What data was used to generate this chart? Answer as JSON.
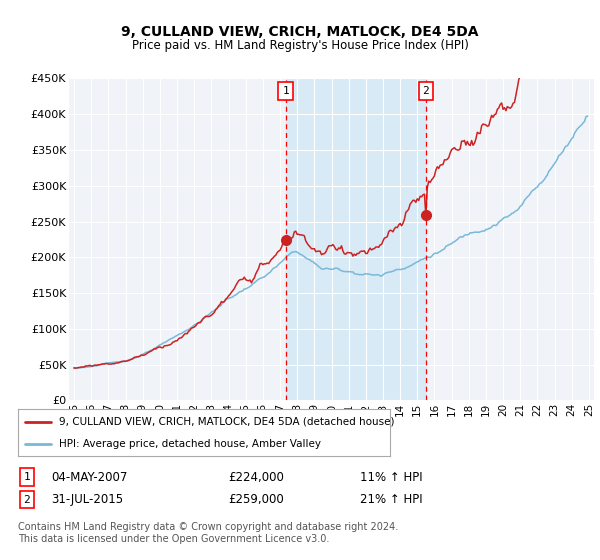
{
  "title": "9, CULLAND VIEW, CRICH, MATLOCK, DE4 5DA",
  "subtitle": "Price paid vs. HM Land Registry's House Price Index (HPI)",
  "ylim": [
    0,
    450000
  ],
  "yticks": [
    0,
    50000,
    100000,
    150000,
    200000,
    250000,
    300000,
    350000,
    400000,
    450000
  ],
  "ytick_labels": [
    "£0",
    "£50K",
    "£100K",
    "£150K",
    "£200K",
    "£250K",
    "£300K",
    "£350K",
    "£400K",
    "£450K"
  ],
  "hpi_color": "#7ab8d9",
  "price_color": "#cc2222",
  "shade_color": "#d8eaf6",
  "legend_line1": "9, CULLAND VIEW, CRICH, MATLOCK, DE4 5DA (detached house)",
  "legend_line2": "HPI: Average price, detached house, Amber Valley",
  "table_row1_num": "1",
  "table_row1_date": "04-MAY-2007",
  "table_row1_price": "£224,000",
  "table_row1_hpi": "11% ↑ HPI",
  "table_row2_num": "2",
  "table_row2_date": "31-JUL-2015",
  "table_row2_price": "£259,000",
  "table_row2_hpi": "21% ↑ HPI",
  "footnote": "Contains HM Land Registry data © Crown copyright and database right 2024.\nThis data is licensed under the Open Government Licence v3.0.",
  "background_color": "#ffffff",
  "plot_bg_color": "#f0f4f8"
}
